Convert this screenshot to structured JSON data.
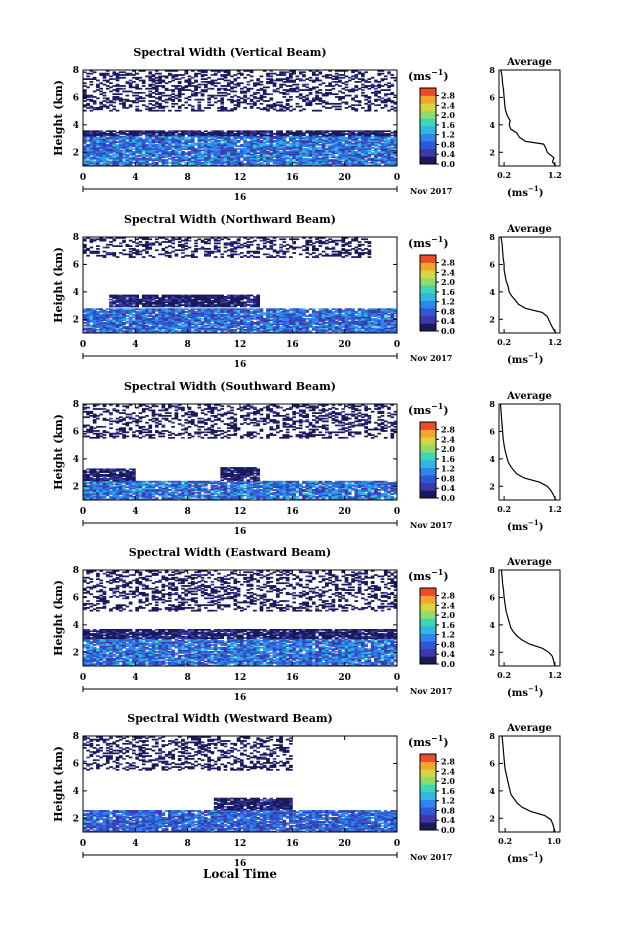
{
  "figure": {
    "bottom_label": "Local Time",
    "colorbar": {
      "unit_base": "(ms",
      "unit_exp": "−1",
      "unit_close": ")",
      "ticks": [
        "0.0",
        "0.4",
        "0.8",
        "1.2",
        "1.6",
        "2.0",
        "2.4",
        "2.8"
      ],
      "colors": [
        "#1a1a5a",
        "#3b3aa8",
        "#2f58d6",
        "#2d86e8",
        "#33b7e2",
        "#3fd6b8",
        "#8fdc6a",
        "#d8d540",
        "#f3a52e",
        "#ec4b2a"
      ]
    },
    "date_label": "Nov 2017",
    "day_label": "16",
    "avg_x_unit_base": "(ms",
    "avg_x_unit_exp": "−1",
    "avg_x_unit_close": ")"
  },
  "chart_data": [
    {
      "type": "heatmap",
      "title": "Spectral Width (Vertical Beam)",
      "xlabel": "",
      "ylabel": "Height (km)",
      "xticks": [
        "0",
        "4",
        "8",
        "12",
        "16",
        "20",
        "0"
      ],
      "xlim": [
        0,
        24
      ],
      "yticks": [
        "2",
        "4",
        "6",
        "8"
      ],
      "ylim": [
        1,
        8
      ],
      "z_unit": "ms^-1",
      "zlim": [
        0.0,
        2.8
      ],
      "regions": [
        {
          "height_range": [
            1.0,
            3.2
          ],
          "time_range": [
            0,
            24
          ],
          "width_range": [
            0.3,
            1.3
          ],
          "coverage": "dense"
        },
        {
          "height_range": [
            3.2,
            3.6
          ],
          "time_range": [
            0,
            24
          ],
          "width_range": [
            0.2,
            0.3
          ],
          "coverage": "dense"
        },
        {
          "height_range": [
            5.0,
            8.0
          ],
          "time_range": [
            0,
            24
          ],
          "width_range": [
            0.1,
            0.3
          ],
          "coverage": "sparse"
        }
      ],
      "average": {
        "title": "Average",
        "xticks": [
          "0.2",
          "1.2"
        ],
        "xlim": [
          0.1,
          1.3
        ],
        "ylim": [
          1,
          8
        ],
        "yticks": [
          "2",
          "4",
          "6",
          "8"
        ],
        "profile": [
          [
            1.0,
            1.22
          ],
          [
            1.3,
            1.15
          ],
          [
            1.6,
            1.18
          ],
          [
            2.0,
            1.05
          ],
          [
            2.3,
            1.02
          ],
          [
            2.6,
            0.98
          ],
          [
            2.8,
            0.62
          ],
          [
            3.1,
            0.5
          ],
          [
            3.4,
            0.45
          ],
          [
            3.7,
            0.33
          ],
          [
            4.0,
            0.3
          ],
          [
            4.3,
            0.32
          ],
          [
            4.7,
            0.26
          ],
          [
            5.2,
            0.22
          ],
          [
            5.6,
            0.21
          ],
          [
            6.0,
            0.2
          ],
          [
            6.5,
            0.19
          ],
          [
            7.0,
            0.17
          ],
          [
            7.5,
            0.16
          ],
          [
            8.0,
            0.14
          ]
        ]
      }
    },
    {
      "type": "heatmap",
      "title": "Spectral Width (Northward Beam)",
      "xlabel": "",
      "ylabel": "Height (km)",
      "xticks": [
        "0",
        "4",
        "8",
        "12",
        "16",
        "20",
        "0"
      ],
      "xlim": [
        0,
        24
      ],
      "yticks": [
        "2",
        "4",
        "6",
        "8"
      ],
      "ylim": [
        1,
        8
      ],
      "z_unit": "ms^-1",
      "zlim": [
        0.0,
        2.8
      ],
      "regions": [
        {
          "height_range": [
            1.0,
            2.8
          ],
          "time_range": [
            0,
            24
          ],
          "width_range": [
            0.3,
            1.2
          ],
          "coverage": "dense"
        },
        {
          "height_range": [
            2.9,
            3.8
          ],
          "time_range": [
            2,
            13.5
          ],
          "width_range": [
            0.2,
            0.3
          ],
          "coverage": "dense"
        },
        {
          "height_range": [
            6.5,
            8.0
          ],
          "time_range": [
            0,
            22
          ],
          "width_range": [
            0.1,
            0.3
          ],
          "coverage": "sparse"
        }
      ],
      "average": {
        "title": "Average",
        "xticks": [
          "0.2",
          "1.2"
        ],
        "xlim": [
          0.1,
          1.3
        ],
        "ylim": [
          1,
          8
        ],
        "yticks": [
          "2",
          "4",
          "6",
          "8"
        ],
        "profile": [
          [
            1.0,
            1.22
          ],
          [
            1.4,
            1.15
          ],
          [
            1.8,
            1.1
          ],
          [
            2.2,
            1.05
          ],
          [
            2.5,
            0.95
          ],
          [
            2.8,
            0.62
          ],
          [
            3.1,
            0.48
          ],
          [
            3.4,
            0.42
          ],
          [
            3.7,
            0.35
          ],
          [
            4.0,
            0.3
          ],
          [
            4.4,
            0.28
          ],
          [
            4.8,
            0.24
          ],
          [
            5.2,
            0.22
          ],
          [
            5.6,
            0.2
          ],
          [
            6.0,
            0.2
          ],
          [
            6.5,
            0.18
          ],
          [
            7.0,
            0.17
          ],
          [
            7.5,
            0.16
          ],
          [
            8.0,
            0.14
          ]
        ]
      }
    },
    {
      "type": "heatmap",
      "title": "Spectral Width (Southward Beam)",
      "xlabel": "",
      "ylabel": "Height (km)",
      "xticks": [
        "0",
        "4",
        "8",
        "12",
        "16",
        "20",
        "0"
      ],
      "xlim": [
        0,
        24
      ],
      "yticks": [
        "2",
        "4",
        "6",
        "8"
      ],
      "ylim": [
        1,
        8
      ],
      "z_unit": "ms^-1",
      "zlim": [
        0.0,
        2.8
      ],
      "regions": [
        {
          "height_range": [
            1.0,
            2.4
          ],
          "time_range": [
            0,
            24
          ],
          "width_range": [
            0.3,
            1.3
          ],
          "coverage": "dense"
        },
        {
          "height_range": [
            2.4,
            3.3
          ],
          "time_range": [
            0,
            4
          ],
          "width_range": [
            0.2,
            0.3
          ],
          "coverage": "dense"
        },
        {
          "height_range": [
            2.4,
            3.4
          ],
          "time_range": [
            10.5,
            13.5
          ],
          "width_range": [
            0.2,
            0.3
          ],
          "coverage": "dense"
        },
        {
          "height_range": [
            5.5,
            8.0
          ],
          "time_range": [
            0,
            24
          ],
          "width_range": [
            0.1,
            0.3
          ],
          "coverage": "sparse"
        }
      ],
      "average": {
        "title": "Average",
        "xticks": [
          "0.2",
          "1.2"
        ],
        "xlim": [
          0.1,
          1.3
        ],
        "ylim": [
          1,
          8
        ],
        "yticks": [
          "2",
          "4",
          "6",
          "8"
        ],
        "profile": [
          [
            1.0,
            1.22
          ],
          [
            1.3,
            1.18
          ],
          [
            1.7,
            1.12
          ],
          [
            2.0,
            1.05
          ],
          [
            2.3,
            0.9
          ],
          [
            2.6,
            0.6
          ],
          [
            2.9,
            0.45
          ],
          [
            3.2,
            0.38
          ],
          [
            3.5,
            0.32
          ],
          [
            3.8,
            0.28
          ],
          [
            4.2,
            0.25
          ],
          [
            4.6,
            0.22
          ],
          [
            5.0,
            0.2
          ],
          [
            5.5,
            0.18
          ],
          [
            6.0,
            0.17
          ],
          [
            6.5,
            0.16
          ],
          [
            7.0,
            0.15
          ],
          [
            7.5,
            0.14
          ],
          [
            8.0,
            0.13
          ]
        ]
      }
    },
    {
      "type": "heatmap",
      "title": "Spectral Width (Eastward Beam)",
      "xlabel": "",
      "ylabel": "Height (km)",
      "xticks": [
        "0",
        "4",
        "8",
        "12",
        "16",
        "20",
        "0"
      ],
      "xlim": [
        0,
        24
      ],
      "yticks": [
        "2",
        "4",
        "6",
        "8"
      ],
      "ylim": [
        1,
        8
      ],
      "z_unit": "ms^-1",
      "zlim": [
        0.0,
        2.8
      ],
      "regions": [
        {
          "height_range": [
            1.0,
            3.0
          ],
          "time_range": [
            0,
            24
          ],
          "width_range": [
            0.3,
            1.3
          ],
          "coverage": "dense"
        },
        {
          "height_range": [
            3.0,
            3.7
          ],
          "time_range": [
            0,
            24
          ],
          "width_range": [
            0.2,
            0.3
          ],
          "coverage": "dense"
        },
        {
          "height_range": [
            5.0,
            8.0
          ],
          "time_range": [
            0,
            24
          ],
          "width_range": [
            0.1,
            0.3
          ],
          "coverage": "sparse"
        }
      ],
      "average": {
        "title": "Average",
        "xticks": [
          "0.2",
          "1.2"
        ],
        "xlim": [
          0.1,
          1.3
        ],
        "ylim": [
          1,
          8
        ],
        "yticks": [
          "2",
          "4",
          "6",
          "8"
        ],
        "profile": [
          [
            1.0,
            1.2
          ],
          [
            1.3,
            1.18
          ],
          [
            1.7,
            1.15
          ],
          [
            2.0,
            1.08
          ],
          [
            2.3,
            0.95
          ],
          [
            2.6,
            0.7
          ],
          [
            2.9,
            0.55
          ],
          [
            3.2,
            0.45
          ],
          [
            3.5,
            0.38
          ],
          [
            3.8,
            0.33
          ],
          [
            4.2,
            0.3
          ],
          [
            4.6,
            0.27
          ],
          [
            5.0,
            0.24
          ],
          [
            5.5,
            0.22
          ],
          [
            6.0,
            0.2
          ],
          [
            6.5,
            0.19
          ],
          [
            7.0,
            0.17
          ],
          [
            7.5,
            0.16
          ],
          [
            8.0,
            0.15
          ]
        ]
      }
    },
    {
      "type": "heatmap",
      "title": "Spectral Width (Westward Beam)",
      "xlabel": "Local Time",
      "ylabel": "Height (km)",
      "xticks": [
        "0",
        "4",
        "8",
        "12",
        "16",
        "20",
        "0"
      ],
      "xlim": [
        0,
        24
      ],
      "yticks": [
        "2",
        "4",
        "6",
        "8"
      ],
      "ylim": [
        1,
        8
      ],
      "z_unit": "ms^-1",
      "zlim": [
        0.0,
        2.8
      ],
      "regions": [
        {
          "height_range": [
            1.0,
            2.6
          ],
          "time_range": [
            0,
            24
          ],
          "width_range": [
            0.3,
            1.1
          ],
          "coverage": "dense"
        },
        {
          "height_range": [
            2.6,
            3.5
          ],
          "time_range": [
            10,
            16
          ],
          "width_range": [
            0.2,
            0.3
          ],
          "coverage": "dense"
        },
        {
          "height_range": [
            5.5,
            8.0
          ],
          "time_range": [
            0,
            16
          ],
          "width_range": [
            0.1,
            0.3
          ],
          "coverage": "sparse"
        }
      ],
      "average": {
        "title": "Average",
        "xticks": [
          "0.2",
          "1.0"
        ],
        "xlim": [
          0.1,
          1.1
        ],
        "ylim": [
          1,
          8
        ],
        "yticks": [
          "2",
          "4",
          "6",
          "8"
        ],
        "profile": [
          [
            1.0,
            1.02
          ],
          [
            1.3,
            1.0
          ],
          [
            1.6,
            0.98
          ],
          [
            1.9,
            0.95
          ],
          [
            2.2,
            0.85
          ],
          [
            2.5,
            0.62
          ],
          [
            2.8,
            0.48
          ],
          [
            3.1,
            0.4
          ],
          [
            3.4,
            0.35
          ],
          [
            3.7,
            0.3
          ],
          [
            4.0,
            0.28
          ],
          [
            4.4,
            0.26
          ],
          [
            4.8,
            0.24
          ],
          [
            5.2,
            0.22
          ],
          [
            5.6,
            0.2
          ],
          [
            6.0,
            0.19
          ],
          [
            6.5,
            0.18
          ],
          [
            7.0,
            0.17
          ],
          [
            7.5,
            0.16
          ],
          [
            8.0,
            0.15
          ]
        ]
      }
    }
  ]
}
